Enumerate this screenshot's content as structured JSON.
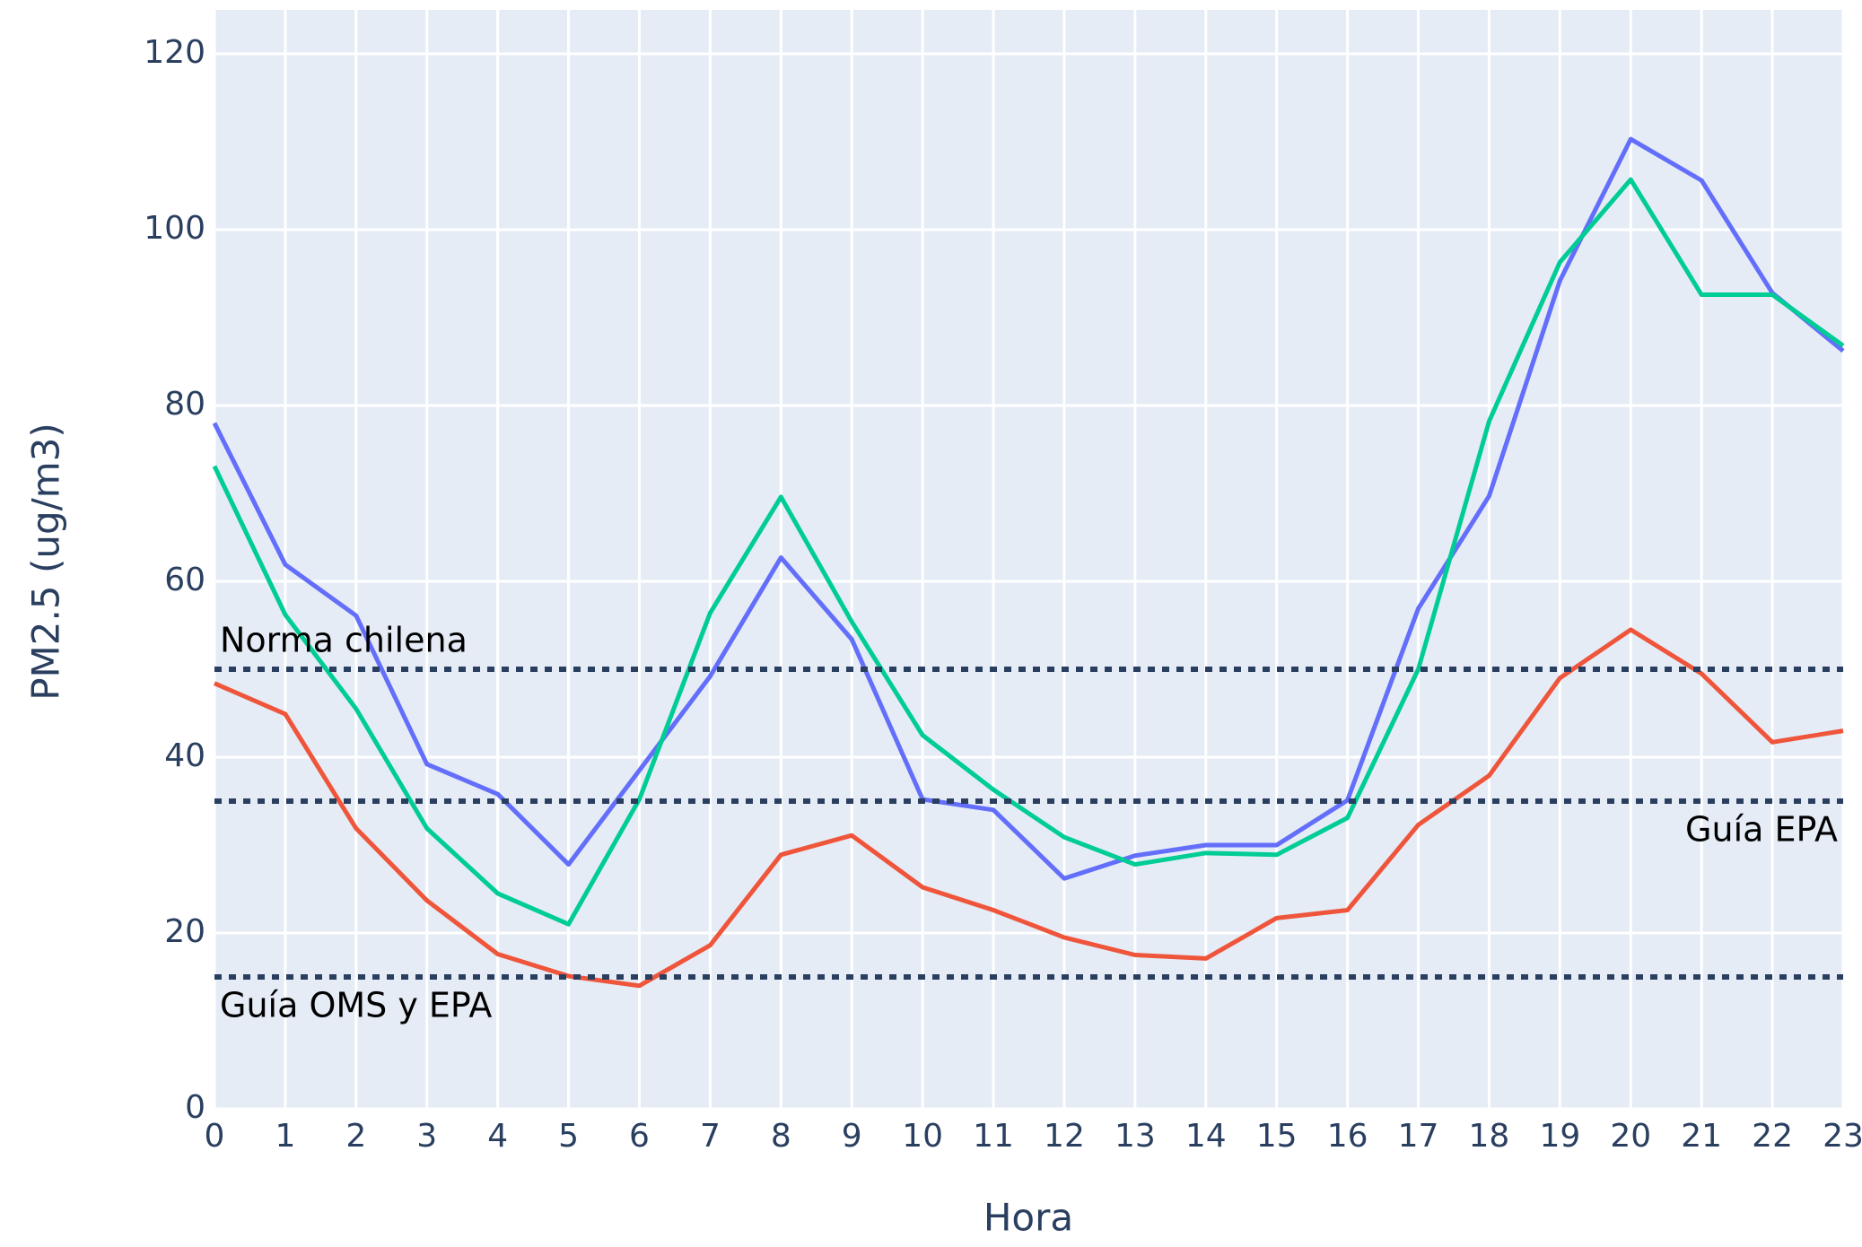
{
  "chart_data": {
    "type": "line",
    "x_label": "Hora",
    "y_label": "PM2.5 (ug/m3)",
    "x": [
      0,
      1,
      2,
      3,
      4,
      5,
      6,
      7,
      8,
      9,
      10,
      11,
      12,
      13,
      14,
      15,
      16,
      17,
      18,
      19,
      20,
      21,
      22,
      23
    ],
    "xlim": [
      0,
      23
    ],
    "xticks": [
      0,
      1,
      2,
      3,
      4,
      5,
      6,
      7,
      8,
      9,
      10,
      11,
      12,
      13,
      14,
      15,
      16,
      17,
      18,
      19,
      20,
      21,
      22,
      23
    ],
    "ylim": [
      0,
      125
    ],
    "yticks": [
      0,
      20,
      40,
      60,
      80,
      100,
      120
    ],
    "grid": true,
    "series": [
      {
        "color": "#636efa",
        "values": [
          78.0,
          61.9,
          56.1,
          39.2,
          35.8,
          27.8,
          38.5,
          49.2,
          62.7,
          53.4,
          35.2,
          34.0,
          26.2,
          28.8,
          30.0,
          30.0,
          35.1,
          56.9,
          69.7,
          94.2,
          110.3,
          105.6,
          92.8,
          86.2
        ]
      },
      {
        "color": "#00cc96",
        "values": [
          73.1,
          56.2,
          45.5,
          31.9,
          24.5,
          21.0,
          35.2,
          56.4,
          69.6,
          55.4,
          42.5,
          36.3,
          30.9,
          27.8,
          29.1,
          28.9,
          33.1,
          50.0,
          78.2,
          96.3,
          105.7,
          92.6,
          92.6,
          86.8
        ]
      },
      {
        "color": "#ef553b",
        "values": [
          48.4,
          44.9,
          31.9,
          23.7,
          17.6,
          15.1,
          14.0,
          18.6,
          28.9,
          31.1,
          25.2,
          22.6,
          19.5,
          17.5,
          17.1,
          21.7,
          22.6,
          32.3,
          37.9,
          49.0,
          54.5,
          49.5,
          41.7,
          43.0
        ]
      }
    ],
    "reference_lines": [
      {
        "value": 50,
        "label": "Norma chilena",
        "position": "top-left"
      },
      {
        "value": 35,
        "label": "Guía EPA",
        "position": "bottom-right"
      },
      {
        "value": 15,
        "label": "Guía OMS y EPA",
        "position": "bottom-left"
      }
    ],
    "reference_color": "#2a3f5f"
  }
}
